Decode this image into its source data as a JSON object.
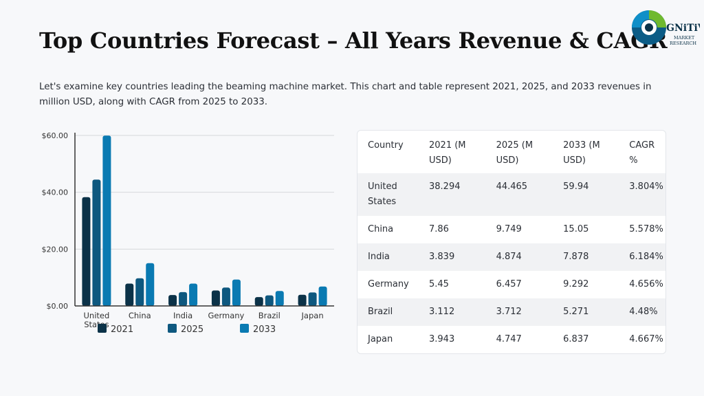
{
  "page": {
    "title": "Top Countries Forecast – All Years Revenue & CAGR",
    "intro": "Let's examine key countries leading the beaming machine market. This chart and table represent 2021, 2025, and 2033 revenues in million USD, along with CAGR from 2025 to 2033."
  },
  "logo": {
    "brand": "GNiTiVE",
    "line1": "MARKET",
    "line2": "RESEARCH",
    "icon": "c-ring-logo-icon"
  },
  "colors": {
    "s2021": "#0b3248",
    "s2025": "#0e587f",
    "s2033": "#0a7ab2",
    "grid": "#d6d8db",
    "axis": "#333333"
  },
  "chart_data": {
    "type": "bar",
    "categories": [
      "United States",
      "China",
      "India",
      "Germany",
      "Brazil",
      "Japan"
    ],
    "series": [
      {
        "name": "2021",
        "values": [
          38.294,
          7.86,
          3.839,
          5.45,
          3.112,
          3.943
        ]
      },
      {
        "name": "2025",
        "values": [
          44.465,
          9.749,
          4.874,
          6.457,
          3.712,
          4.747
        ]
      },
      {
        "name": "2033",
        "values": [
          59.94,
          15.05,
          7.878,
          9.292,
          5.271,
          6.837
        ]
      }
    ],
    "yticks": [
      "$0.00",
      "$20.00",
      "$40.00",
      "$60.00"
    ],
    "ylim": [
      0,
      60
    ],
    "grid": true,
    "legend": "bottom"
  },
  "table": {
    "headers": [
      "Country",
      "2021 (M USD)",
      "2025 (M USD)",
      "2033 (M USD)",
      "CAGR %"
    ],
    "rows": [
      [
        "United States",
        "38.294",
        "44.465",
        "59.94",
        "3.804%"
      ],
      [
        "China",
        "7.86",
        "9.749",
        "15.05",
        "5.578%"
      ],
      [
        "India",
        "3.839",
        "4.874",
        "7.878",
        "6.184%"
      ],
      [
        "Germany",
        "5.45",
        "6.457",
        "9.292",
        "4.656%"
      ],
      [
        "Brazil",
        "3.112",
        "3.712",
        "5.271",
        "4.48%"
      ],
      [
        "Japan",
        "3.943",
        "4.747",
        "6.837",
        "4.667%"
      ]
    ]
  }
}
